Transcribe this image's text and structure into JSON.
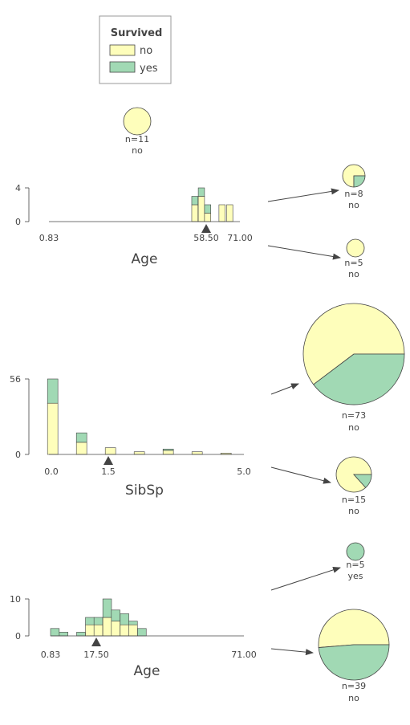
{
  "legend": {
    "title": "Survived",
    "items": [
      {
        "label": "no",
        "color": "#fefebb"
      },
      {
        "label": "yes",
        "color": "#a1d9b4"
      }
    ]
  },
  "colors": {
    "no": "#fefebb",
    "yes": "#a1d9b4",
    "edge": "#444444",
    "arrow": "#444444"
  },
  "leaves": {
    "top": {
      "n_label": "n=11",
      "class": "no",
      "no": 11,
      "yes": 0
    },
    "l1": {
      "n_label": "n=8",
      "class": "no",
      "no": 6,
      "yes": 2
    },
    "l2": {
      "n_label": "n=5",
      "class": "no",
      "no": 5,
      "yes": 0
    },
    "l3": {
      "n_label": "n=73",
      "class": "no",
      "no": 44,
      "yes": 29
    },
    "l4": {
      "n_label": "n=15",
      "class": "no",
      "no": 13,
      "yes": 2
    },
    "l5": {
      "n_label": "n=5",
      "class": "yes",
      "no": 0,
      "yes": 5
    },
    "l6": {
      "n_label": "n=39",
      "class": "no",
      "no": 20,
      "yes": 19
    }
  },
  "chart_data": [
    {
      "type": "bar",
      "name": "age-split-1",
      "xlabel": "Age",
      "split_value": 58.5,
      "xlim": [
        0.83,
        71.0
      ],
      "ylim": [
        0,
        4
      ],
      "yticks": [
        "0",
        "4"
      ],
      "xticks": [
        "0.83",
        "58.50",
        "71.00"
      ],
      "bins": [
        {
          "x0": 53.3,
          "no": 2,
          "yes": 1
        },
        {
          "x0": 55.7,
          "no": 3,
          "yes": 1
        },
        {
          "x0": 58.0,
          "no": 1,
          "yes": 1
        },
        {
          "x0": 63.3,
          "no": 2,
          "yes": 0
        },
        {
          "x0": 66.1,
          "no": 2,
          "yes": 0
        }
      ],
      "bin_width": 2.3
    },
    {
      "type": "bar",
      "name": "sibsp-split",
      "xlabel": "SibSp",
      "split_value": 1.5,
      "xlim": [
        0.0,
        5.0
      ],
      "ylim": [
        0,
        56
      ],
      "yticks": [
        "0",
        "56"
      ],
      "xticks": [
        "0.0",
        "1.5",
        "5.0"
      ],
      "bins": [
        {
          "x0": -0.1,
          "no": 38,
          "yes": 18
        },
        {
          "x0": 0.65,
          "no": 9,
          "yes": 7
        },
        {
          "x0": 1.4,
          "no": 5,
          "yes": 0
        },
        {
          "x0": 2.15,
          "no": 2,
          "yes": 0
        },
        {
          "x0": 2.9,
          "no": 3,
          "yes": 1
        },
        {
          "x0": 3.65,
          "no": 2,
          "yes": 0
        },
        {
          "x0": 4.4,
          "no": 1,
          "yes": 0
        }
      ],
      "bin_width": 0.27
    },
    {
      "type": "bar",
      "name": "age-split-2",
      "xlabel": "Age",
      "split_value": 17.5,
      "xlim": [
        0.83,
        71.0
      ],
      "ylim": [
        0,
        10
      ],
      "yticks": [
        "0",
        "10"
      ],
      "xticks": [
        "0.83",
        "17.50",
        "71.00"
      ],
      "bins": [
        {
          "x0": 0.83,
          "no": 0,
          "yes": 2
        },
        {
          "x0": 4.0,
          "no": 0,
          "yes": 1
        },
        {
          "x0": 10.3,
          "no": 0,
          "yes": 1
        },
        {
          "x0": 13.5,
          "no": 3,
          "yes": 2
        },
        {
          "x0": 16.6,
          "no": 3,
          "yes": 2
        },
        {
          "x0": 19.8,
          "no": 5,
          "yes": 5
        },
        {
          "x0": 22.9,
          "no": 4,
          "yes": 3
        },
        {
          "x0": 26.1,
          "no": 3,
          "yes": 3
        },
        {
          "x0": 29.2,
          "no": 3,
          "yes": 1
        },
        {
          "x0": 32.4,
          "no": 0,
          "yes": 2
        }
      ],
      "bin_width": 3.15
    }
  ]
}
